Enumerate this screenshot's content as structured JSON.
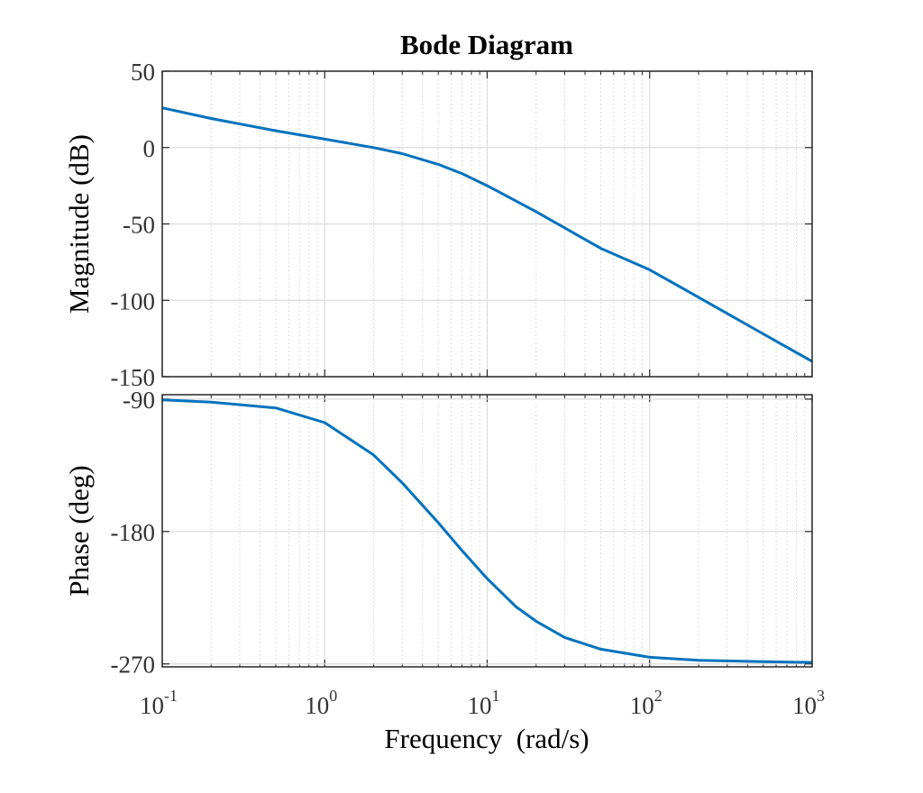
{
  "chart_data": {
    "type": "line",
    "title": "Bode Diagram",
    "xlabel": "Frequency  (rad/s)",
    "x_scale": "log",
    "xlim": [
      0.1,
      1000
    ],
    "x_ticks": [
      0.1,
      1,
      10,
      100,
      1000
    ],
    "x_tick_labels": [
      {
        "base": "10",
        "exp": "-1"
      },
      {
        "base": "10",
        "exp": "0"
      },
      {
        "base": "10",
        "exp": "1"
      },
      {
        "base": "10",
        "exp": "2"
      },
      {
        "base": "10",
        "exp": "3"
      }
    ],
    "grid": true,
    "line_color": "#0072BD",
    "panels": [
      {
        "name": "magnitude",
        "ylabel": "Magnitude (dB)",
        "ylim": [
          -150,
          50
        ],
        "y_ticks": [
          50,
          0,
          -50,
          -100,
          -150
        ],
        "y_tick_labels": [
          "50",
          "0",
          "-50",
          "-100",
          "-150"
        ],
        "x": [
          0.1,
          0.2,
          0.5,
          1,
          2,
          3,
          5,
          7,
          10,
          20,
          50,
          100,
          200,
          500,
          1000
        ],
        "y": [
          26,
          19,
          11,
          5.5,
          0,
          -4,
          -11,
          -17,
          -25,
          -42,
          -66,
          -80,
          -98,
          -122,
          -140
        ]
      },
      {
        "name": "phase",
        "ylabel": "Phase (deg)",
        "ylim": [
          -272,
          -87
        ],
        "y_ticks": [
          -90,
          -180,
          -270
        ],
        "y_tick_labels": [
          "-90",
          "-180",
          "-270"
        ],
        "x": [
          0.1,
          0.2,
          0.5,
          1,
          2,
          3,
          5,
          7,
          10,
          15,
          20,
          30,
          50,
          100,
          200,
          500,
          1000
        ],
        "y": [
          -90.5,
          -92,
          -96,
          -106,
          -128,
          -147,
          -174,
          -193,
          -212,
          -231,
          -241,
          -252,
          -260,
          -265.5,
          -267.5,
          -268.5,
          -269
        ]
      }
    ]
  }
}
